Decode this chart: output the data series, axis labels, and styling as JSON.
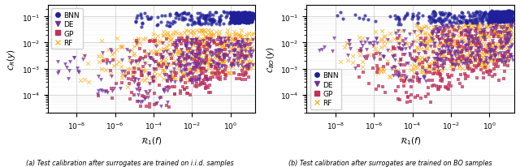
{
  "left_plot": {
    "xlabel": "$\\mathcal{R}_1(f)$",
    "ylabel": "$\\mathcal{C}_R(y)$",
    "xlim_log": [
      -9.5,
      1.3
    ],
    "ylim_log": [
      -4.7,
      -0.55
    ],
    "legend_loc": "upper left"
  },
  "right_plot": {
    "xlabel": "$\\mathcal{R}_1(f)$",
    "ylabel": "$\\mathcal{C}_{BO}(y)$",
    "xlim_log": [
      -9.5,
      1.3
    ],
    "ylim_log": [
      -4.7,
      -0.55
    ],
    "legend_loc": "lower left"
  },
  "series": {
    "BNN": {
      "color": "#1f1f99",
      "marker": "o",
      "ms": 3,
      "label": "BNN"
    },
    "DE": {
      "color": "#7030a0",
      "marker": "v",
      "ms": 3.5,
      "label": "DE"
    },
    "GP": {
      "color": "#c0305a",
      "marker": "s",
      "ms": 3,
      "label": "GP"
    },
    "RF": {
      "color": "#ffa500",
      "marker": "x",
      "ms": 3.5,
      "label": "RF"
    }
  },
  "caption_left": "(a) Test calibration after surrogates are trained on i.i.d. samples",
  "caption_right": "(b) Test calibration after surrogates are trained on BO samples",
  "fig_width": 6.4,
  "fig_height": 2.07,
  "dpi": 100
}
